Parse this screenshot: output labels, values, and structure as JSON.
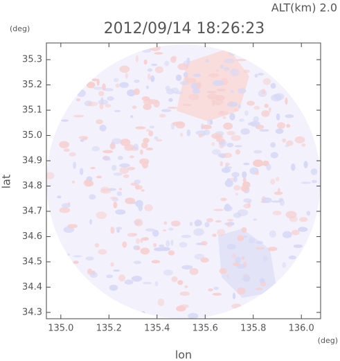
{
  "chart_data": {
    "type": "image",
    "title": "2012/09/14 18:26:23",
    "annotation": "ALT(km) 2.0",
    "xlabel": "lon",
    "ylabel": "lat",
    "xunit": "(deg)",
    "yunit": "(deg)",
    "xlim": [
      134.94,
      136.08
    ],
    "xticks": [
      {
        "value": 135,
        "label": "135.0"
      },
      135.2,
      135.4,
      135.6,
      135.8,
      {
        "value": 136,
        "label": "136.0"
      }
    ],
    "ylim": [
      34.275,
      35.366
    ],
    "yticks": [
      34.3,
      34.4,
      34.5,
      34.6,
      34.7,
      34.8,
      34.9,
      {
        "value": 35,
        "label": "35.0"
      },
      35.1,
      35.2,
      35.3
    ],
    "grid": false
  }
}
